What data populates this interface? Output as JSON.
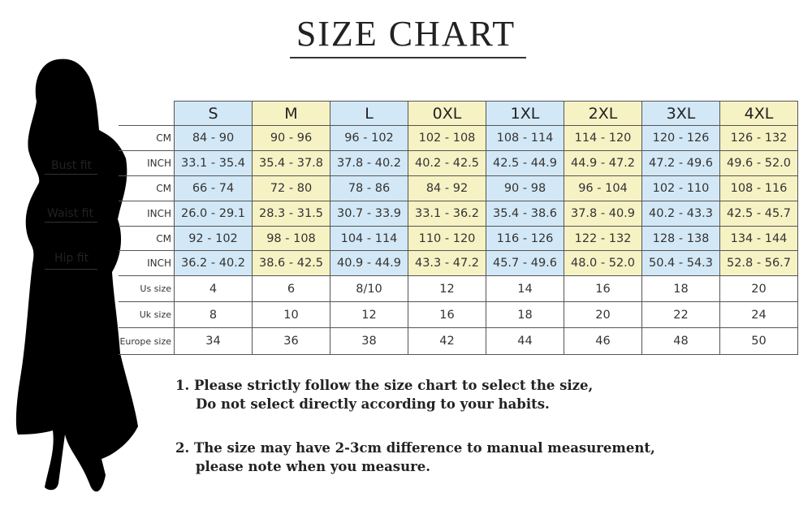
{
  "title": "SIZE CHART",
  "sizes": [
    "S",
    "M",
    "L",
    "0XL",
    "1XL",
    "2XL",
    "3XL",
    "4XL"
  ],
  "fit_labels": {
    "bust": "Bust fit",
    "waist": "Waist fit",
    "hip": "Hip fit"
  },
  "rows": [
    {
      "label": "CM",
      "values": [
        "84 - 90",
        "90 - 96",
        "96 - 102",
        "102 - 108",
        "108 - 114",
        "114 - 120",
        "120 - 126",
        "126 - 132"
      ]
    },
    {
      "label": "INCH",
      "values": [
        "33.1 - 35.4",
        "35.4 - 37.8",
        "37.8 - 40.2",
        "40.2 - 42.5",
        "42.5 - 44.9",
        "44.9 - 47.2",
        "47.2 - 49.6",
        "49.6 - 52.0"
      ]
    },
    {
      "label": "CM",
      "values": [
        "66 - 74",
        "72 - 80",
        "78 - 86",
        "84 - 92",
        "90 - 98",
        "96 - 104",
        "102 - 110",
        "108 - 116"
      ]
    },
    {
      "label": "INCH",
      "values": [
        "26.0 - 29.1",
        "28.3 - 31.5",
        "30.7 - 33.9",
        "33.1 - 36.2",
        "35.4 - 38.6",
        "37.8 - 40.9",
        "40.2 - 43.3",
        "42.5 - 45.7"
      ]
    },
    {
      "label": "CM",
      "values": [
        "92 - 102",
        "98 - 108",
        "104 - 114",
        "110 - 120",
        "116 - 126",
        "122 - 132",
        "128 - 138",
        "134 - 144"
      ]
    },
    {
      "label": "INCH",
      "values": [
        "36.2 - 40.2",
        "38.6 - 42.5",
        "40.9 - 44.9",
        "43.3 - 47.2",
        "45.7 - 49.6",
        "48.0 - 52.0",
        "50.4 - 54.3",
        "52.8 - 56.7"
      ]
    },
    {
      "label": "Us size",
      "values": [
        "4",
        "6",
        "8/10",
        "12",
        "14",
        "16",
        "18",
        "20"
      ]
    },
    {
      "label": "Uk size",
      "values": [
        "8",
        "10",
        "12",
        "16",
        "18",
        "20",
        "22",
        "24"
      ]
    },
    {
      "label": "Europe size",
      "values": [
        "34",
        "36",
        "38",
        "42",
        "44",
        "46",
        "48",
        "50"
      ]
    }
  ],
  "notes": [
    {
      "line1": "1.  Please strictly follow the size chart to select the size,",
      "line2": "Do not select directly according to your habits."
    },
    {
      "line1": "2.  The size may have 2-3cm difference  to manual measurement,",
      "line2": "please note when you measure."
    }
  ],
  "colors": {
    "blue_cell": "#d3e8f6",
    "yellow_cell": "#f7f2c4"
  },
  "illustration": "woman-silhouette"
}
